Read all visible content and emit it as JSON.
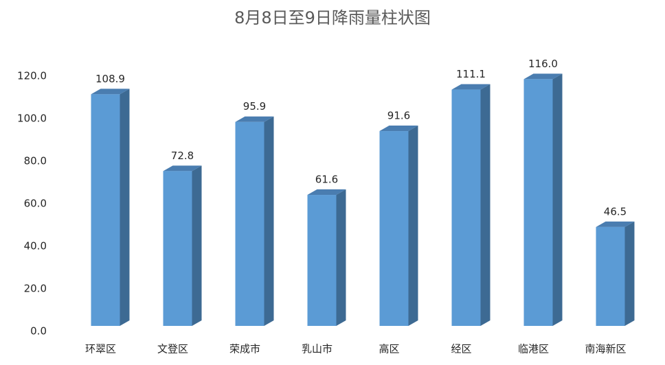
{
  "chart_data": {
    "type": "bar3d",
    "title": "8月8日至9日降雨量柱状图",
    "categories": [
      "环翠区",
      "文登区",
      "荣成市",
      "乳山市",
      "高区",
      "经区",
      "临港区",
      "南海新区"
    ],
    "values": [
      108.9,
      72.8,
      95.9,
      61.6,
      91.6,
      111.1,
      116,
      46.5
    ],
    "value_labels": [
      "108.9",
      "72.8",
      "95.9",
      "61.6",
      "91.6",
      "111.1",
      "116.0",
      "46.5"
    ],
    "color": "#5b9bd5",
    "ylim": [
      0,
      120
    ],
    "yticks": [
      {
        "value": 0,
        "label": "0.0"
      },
      {
        "value": 20,
        "label": "20.0"
      },
      {
        "value": 40,
        "label": "40.0"
      },
      {
        "value": 60,
        "label": "60.0"
      },
      {
        "value": 80,
        "label": "80.0"
      },
      {
        "value": 100,
        "label": "100.0"
      },
      {
        "value": 120,
        "label": "120.0"
      }
    ],
    "grid": false
  }
}
